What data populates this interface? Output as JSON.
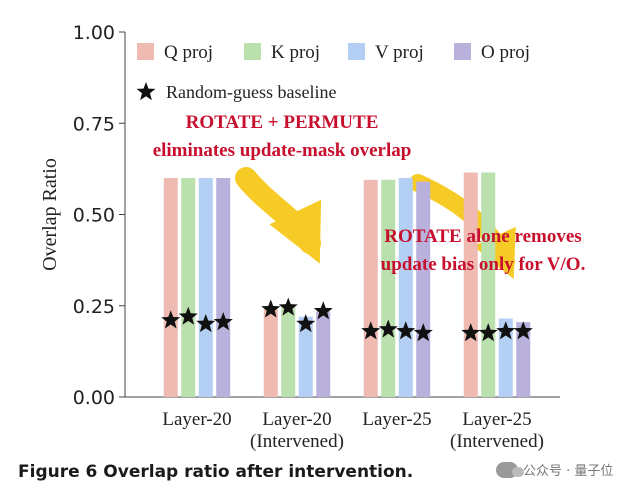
{
  "chart_data": {
    "type": "bar",
    "ylabel": "Overlap Ratio",
    "ylim": [
      0,
      1
    ],
    "yticks": [
      "0.00",
      "0.25",
      "0.50",
      "0.75",
      "1.00"
    ],
    "grid": false,
    "legend_position": "top",
    "categories": [
      [
        "Layer-20"
      ],
      [
        "Layer-20",
        "(Intervened)"
      ],
      [
        "Layer-25"
      ],
      [
        "Layer-25",
        "(Intervened)"
      ]
    ],
    "series": [
      {
        "name": "Q proj",
        "color": "#efbab2",
        "values": [
          0.6,
          0.24,
          0.595,
          0.615
        ],
        "baseline": [
          0.21,
          0.24,
          0.18,
          0.175
        ]
      },
      {
        "name": "K proj",
        "color": "#b9e0ad",
        "values": [
          0.6,
          0.245,
          0.595,
          0.615
        ],
        "baseline": [
          0.22,
          0.245,
          0.185,
          0.175
        ]
      },
      {
        "name": "V proj",
        "color": "#b3cff4",
        "values": [
          0.6,
          0.22,
          0.6,
          0.215
        ],
        "baseline": [
          0.2,
          0.2,
          0.18,
          0.18
        ]
      },
      {
        "name": "O proj",
        "color": "#b9b1dc",
        "values": [
          0.6,
          0.235,
          0.59,
          0.205
        ],
        "baseline": [
          0.205,
          0.235,
          0.175,
          0.18
        ]
      }
    ],
    "baseline_label": "Random-guess baseline",
    "annotations": [
      {
        "lines": [
          "ROTATE + PERMUTE",
          "eliminates update-mask overlap"
        ],
        "color": "#c8102e"
      },
      {
        "lines": [
          "ROTATE alone removes",
          "update bias only for V/O."
        ],
        "color": "#c8102e"
      }
    ],
    "arrow_color": "#f6c300"
  },
  "caption": "Figure 6   Overlap ratio after intervention.",
  "watermark": "公众号 · 量子位"
}
